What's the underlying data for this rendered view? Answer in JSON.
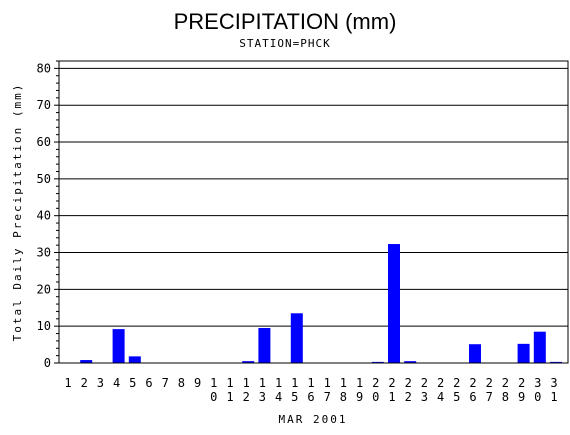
{
  "chart_data": {
    "type": "bar",
    "title": "PRECIPITATION (mm)",
    "subtitle": "STATION=PHCK",
    "xlabel": "MAR 2001",
    "ylabel": "Total Daily Precipitation (mm)",
    "ylim": [
      0,
      82
    ],
    "yticks": [
      0,
      10,
      20,
      30,
      40,
      50,
      60,
      70,
      80
    ],
    "grid": true,
    "bar_color": "#0000ff",
    "categories": [
      "1",
      "2",
      "3",
      "4",
      "5",
      "6",
      "7",
      "8",
      "9",
      "10",
      "11",
      "12",
      "13",
      "14",
      "15",
      "16",
      "17",
      "18",
      "19",
      "20",
      "21",
      "22",
      "23",
      "24",
      "25",
      "26",
      "27",
      "28",
      "29",
      "30",
      "31"
    ],
    "values": [
      0,
      0.8,
      0,
      9.2,
      1.8,
      0,
      0,
      0,
      0,
      0,
      0,
      0.5,
      9.5,
      0,
      13.5,
      0,
      0,
      0,
      0,
      0.3,
      32.3,
      0.5,
      0,
      0,
      0,
      5.1,
      0,
      0,
      5.2,
      8.5,
      0.3
    ]
  }
}
